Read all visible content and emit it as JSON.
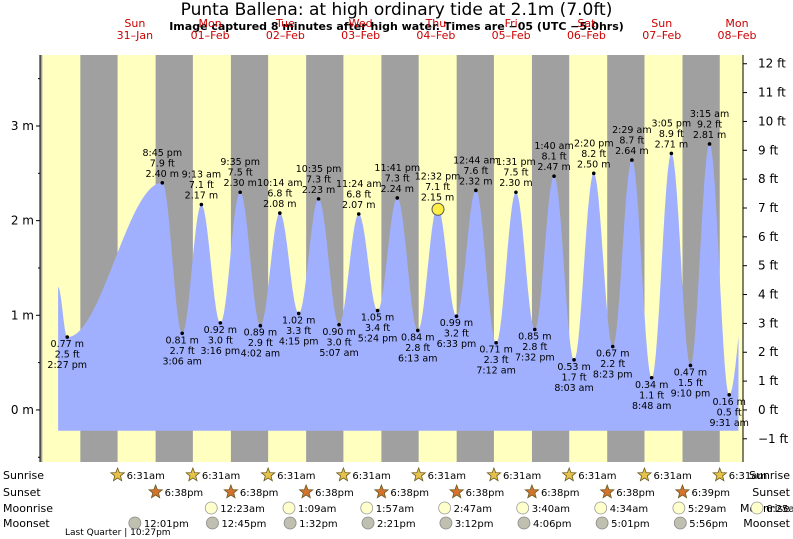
{
  "header": {
    "title": "Punta Ballena: at high  ordinary tide at 2.1m (7.0ft)",
    "subtitle": "Image captured 8 minutes after high water. Times are −05 (UTC −5.0hrs)"
  },
  "colors": {
    "night": "#a0a0a0",
    "day": "#ffffc0",
    "tide_fill": "#a0b0ff",
    "day_label": "#cc0000",
    "now_marker": "#ffee44"
  },
  "chart_data": {
    "type": "area",
    "x_unit": "days from 31-Jan 00:00",
    "xlim": [
      -0.76,
      8.58
    ],
    "ylim_m": [
      -0.55,
      3.75
    ],
    "y_ticks_m": [
      0,
      1,
      2,
      3
    ],
    "y_ticks_m_labels": [
      "0 m",
      "1 m",
      "2 m",
      "3 m"
    ],
    "y_ticks_ft": [
      -1,
      0,
      1,
      2,
      3,
      4,
      5,
      6,
      7,
      8,
      9,
      10,
      11,
      12
    ],
    "y_ticks_ft_labels": [
      "−1 ft",
      "0 ft",
      "1 ft",
      "2 ft",
      "3 ft",
      "4 ft",
      "5 ft",
      "6 ft",
      "7 ft",
      "8 ft",
      "9 ft",
      "10 ft",
      "11 ft",
      "12 ft"
    ],
    "days": [
      {
        "dow": "Sun",
        "date": "31–Jan",
        "x": 0.0
      },
      {
        "dow": "Mon",
        "date": "01–Feb",
        "x": 1.0
      },
      {
        "dow": "Tue",
        "date": "02–Feb",
        "x": 2.0
      },
      {
        "dow": "Wed",
        "date": "03–Feb",
        "x": 3.0
      },
      {
        "dow": "Thu",
        "date": "04–Feb",
        "x": 4.0
      },
      {
        "dow": "Fri",
        "date": "05–Feb",
        "x": 5.0
      },
      {
        "dow": "Sat",
        "date": "06–Feb",
        "x": 6.0
      },
      {
        "dow": "Sun",
        "date": "07–Feb",
        "x": 7.0
      },
      {
        "dow": "Mon",
        "date": "08–Feb",
        "x": 8.0
      }
    ],
    "sunrise_x": 0.271,
    "sunset_x": 0.776,
    "tide_x_start": -0.52,
    "tide_x_end": 8.52,
    "tide_y_start": 1.3,
    "tide_y_end": 1.5,
    "extremes": [
      {
        "kind": "low",
        "x": -0.399,
        "m": 0.77,
        "time": "2:27 pm",
        "ft": "2.5 ft",
        "m_label": "0.77 m"
      },
      {
        "kind": "high",
        "x": 0.031,
        "m": 2.4,
        "time": "8:45 pm",
        "ft": "7.9 ft",
        "m_label": "2.40 m"
      },
      {
        "kind": "low",
        "x": 0.546,
        "m": 0.81,
        "time": "3:06 am",
        "ft": "2.7 ft",
        "m_label": "0.81 m"
      },
      {
        "kind": "high",
        "x": 0.999,
        "m": 2.17,
        "time": "9:13 am",
        "ft": "7.1 ft",
        "m_label": "2.17 m"
      },
      {
        "kind": "low",
        "x": 1.431,
        "m": 0.92,
        "time": "3:16 pm",
        "ft": "3.0 ft",
        "m_label": "0.92 m"
      },
      {
        "kind": "high",
        "x": 1.898,
        "m": 2.3,
        "time": "9:35 pm",
        "ft": "7.5 ft",
        "m_label": "2.30 m"
      },
      {
        "kind": "low",
        "x": 2.334,
        "m": 0.89,
        "time": "4:02 am",
        "ft": "2.9 ft",
        "m_label": "0.89 m"
      },
      {
        "kind": "high",
        "x": 2.83,
        "m": 2.08,
        "time": "10:14 am",
        "ft": "6.8 ft",
        "m_label": "2.08 m"
      },
      {
        "kind": "low",
        "x": 3.316,
        "m": 1.02,
        "time": "4:15 pm",
        "ft": "3.3 ft",
        "m_label": "1.02 m"
      },
      {
        "kind": "high",
        "x": 3.827,
        "m": 2.23,
        "time": "10:35 pm",
        "ft": "7.3 ft",
        "m_label": "2.23 m"
      },
      {
        "kind": "low",
        "x": 4.316,
        "m": 0.9,
        "time": "5:07 am",
        "ft": "3.0 ft",
        "m_label": "0.90 m"
      },
      {
        "kind": "high",
        "x": 4.837,
        "m": 2.07,
        "time": "11:24 am",
        "ft": "6.8 ft",
        "m_label": "2.07 m"
      },
      {
        "kind": "low",
        "x": 5.307,
        "m": 1.05,
        "time": "5:24 pm",
        "ft": "3.4 ft",
        "m_label": "1.05 m"
      },
      {
        "kind": "high",
        "x": 5.809,
        "m": 2.24,
        "time": "11:41 pm",
        "ft": "7.3 ft",
        "m_label": "2.24 m"
      },
      {
        "kind": "low",
        "x": 6.317,
        "m": 0.84,
        "time": "6:13 am",
        "ft": "2.8 ft",
        "m_label": "0.84 m"
      },
      {
        "kind": "high",
        "x": 6.83,
        "m": 2.15,
        "time": "12:32 pm",
        "ft": "7.1 ft",
        "m_label": "2.15 m"
      },
      {
        "kind": "low",
        "x": 7.325,
        "m": 0.99,
        "time": "6:33 pm",
        "ft": "3.2 ft",
        "m_label": "0.99 m"
      },
      {
        "kind": "high",
        "x": 7.815,
        "m": 2.32,
        "time": "12:44 am",
        "ft": "7.6 ft",
        "m_label": "2.32 m"
      },
      {
        "kind": "low",
        "x": 8.317,
        "m": 0.71,
        "time": "7:12 am",
        "ft": "2.3 ft",
        "m_label": "0.71 m"
      },
      {
        "kind": "high",
        "x": 8.814,
        "m": 2.3,
        "time": "1:31 pm",
        "ft": "7.5 ft",
        "m_label": "2.30 m"
      },
      {
        "kind": "low",
        "x": 9.314,
        "m": 0.85,
        "time": "7:32 pm",
        "ft": "2.8 ft",
        "m_label": "0.85 m"
      },
      {
        "kind": "high",
        "x": 9.803,
        "m": 2.47,
        "time": "1:40 am",
        "ft": "8.1 ft",
        "m_label": "2.47 m"
      },
      {
        "kind": "low",
        "x": 10.314,
        "m": 0.53,
        "time": "8:03 am",
        "ft": "1.7 ft",
        "m_label": "0.53 m"
      },
      {
        "kind": "high",
        "x": 10.803,
        "m": 2.5,
        "time": "2:20 pm",
        "ft": "8.2 ft",
        "m_label": "2.50 m"
      },
      {
        "kind": "low",
        "x": 11.308,
        "m": 0.67,
        "time": "8:23 pm",
        "ft": "2.2 ft",
        "m_label": "0.67 m"
      },
      {
        "kind": "high",
        "x": 11.804,
        "m": 2.64,
        "time": "2:29 am",
        "ft": "8.7 ft",
        "m_label": "2.64 m"
      },
      {
        "kind": "low",
        "x": 12.306,
        "m": 0.34,
        "time": "8:48 am",
        "ft": "1.1 ft",
        "m_label": "0.34 m"
      },
      {
        "kind": "high",
        "x": 12.804,
        "m": 2.71,
        "time": "3:05 pm",
        "ft": "8.9 ft",
        "m_label": "2.71 m"
      },
      {
        "kind": "low",
        "x": 13.306,
        "m": 0.47,
        "time": "9:10 pm",
        "ft": "1.5 ft",
        "m_label": "0.47 m"
      },
      {
        "kind": "high",
        "x": 13.81,
        "m": 2.81,
        "time": "3:15 am",
        "ft": "9.2 ft",
        "m_label": "2.81 m"
      },
      {
        "kind": "low",
        "x": 14.312,
        "m": 0.16,
        "time": "9:31 am",
        "ft": "0.5 ft",
        "m_label": "0.16 m"
      }
    ],
    "now": {
      "x": 4.528,
      "m": 2.12
    }
  },
  "rows": {
    "labels": [
      "Sunrise",
      "Sunset",
      "Moonrise",
      "Moonset"
    ],
    "sunrise": [
      {
        "x": 0.271,
        "t": "6:31am"
      },
      {
        "x": 1.271,
        "t": "6:31am"
      },
      {
        "x": 2.271,
        "t": "6:31am"
      },
      {
        "x": 3.271,
        "t": "6:31am"
      },
      {
        "x": 4.271,
        "t": "6:31am"
      },
      {
        "x": 5.271,
        "t": "6:31am"
      },
      {
        "x": 6.271,
        "t": "6:31am"
      },
      {
        "x": 7.271,
        "t": "6:31am"
      },
      {
        "x": 8.271,
        "t": "6:31am"
      }
    ],
    "sunset": [
      {
        "x": 0.776,
        "t": "6:38pm"
      },
      {
        "x": 1.776,
        "t": "6:38pm"
      },
      {
        "x": 2.776,
        "t": "6:38pm"
      },
      {
        "x": 3.776,
        "t": "6:38pm"
      },
      {
        "x": 4.776,
        "t": "6:38pm"
      },
      {
        "x": 5.776,
        "t": "6:38pm"
      },
      {
        "x": 6.776,
        "t": "6:38pm"
      },
      {
        "x": 7.776,
        "t": "6:39pm"
      }
    ],
    "moonrise": [
      {
        "x": 1.515,
        "t": "12:23am"
      },
      {
        "x": 2.548,
        "t": "1:09am"
      },
      {
        "x": 3.581,
        "t": "1:57am"
      },
      {
        "x": 4.616,
        "t": "2:47am"
      },
      {
        "x": 5.653,
        "t": "3:40am"
      },
      {
        "x": 6.69,
        "t": "4:34am"
      },
      {
        "x": 7.728,
        "t": "5:29am"
      },
      {
        "x": 8.767,
        "t": "6:25am"
      }
    ],
    "moonset": [
      {
        "x": 0.5,
        "t": "12:01pm"
      },
      {
        "x": 1.531,
        "t": "12:45pm"
      },
      {
        "x": 2.563,
        "t": "1:32pm"
      },
      {
        "x": 3.598,
        "t": "2:21pm"
      },
      {
        "x": 4.633,
        "t": "3:12pm"
      },
      {
        "x": 5.67,
        "t": "4:06pm"
      },
      {
        "x": 6.708,
        "t": "5:01pm"
      },
      {
        "x": 7.747,
        "t": "5:56pm"
      }
    ],
    "moon_phase_note": "Last Quarter | 10:27pm"
  }
}
